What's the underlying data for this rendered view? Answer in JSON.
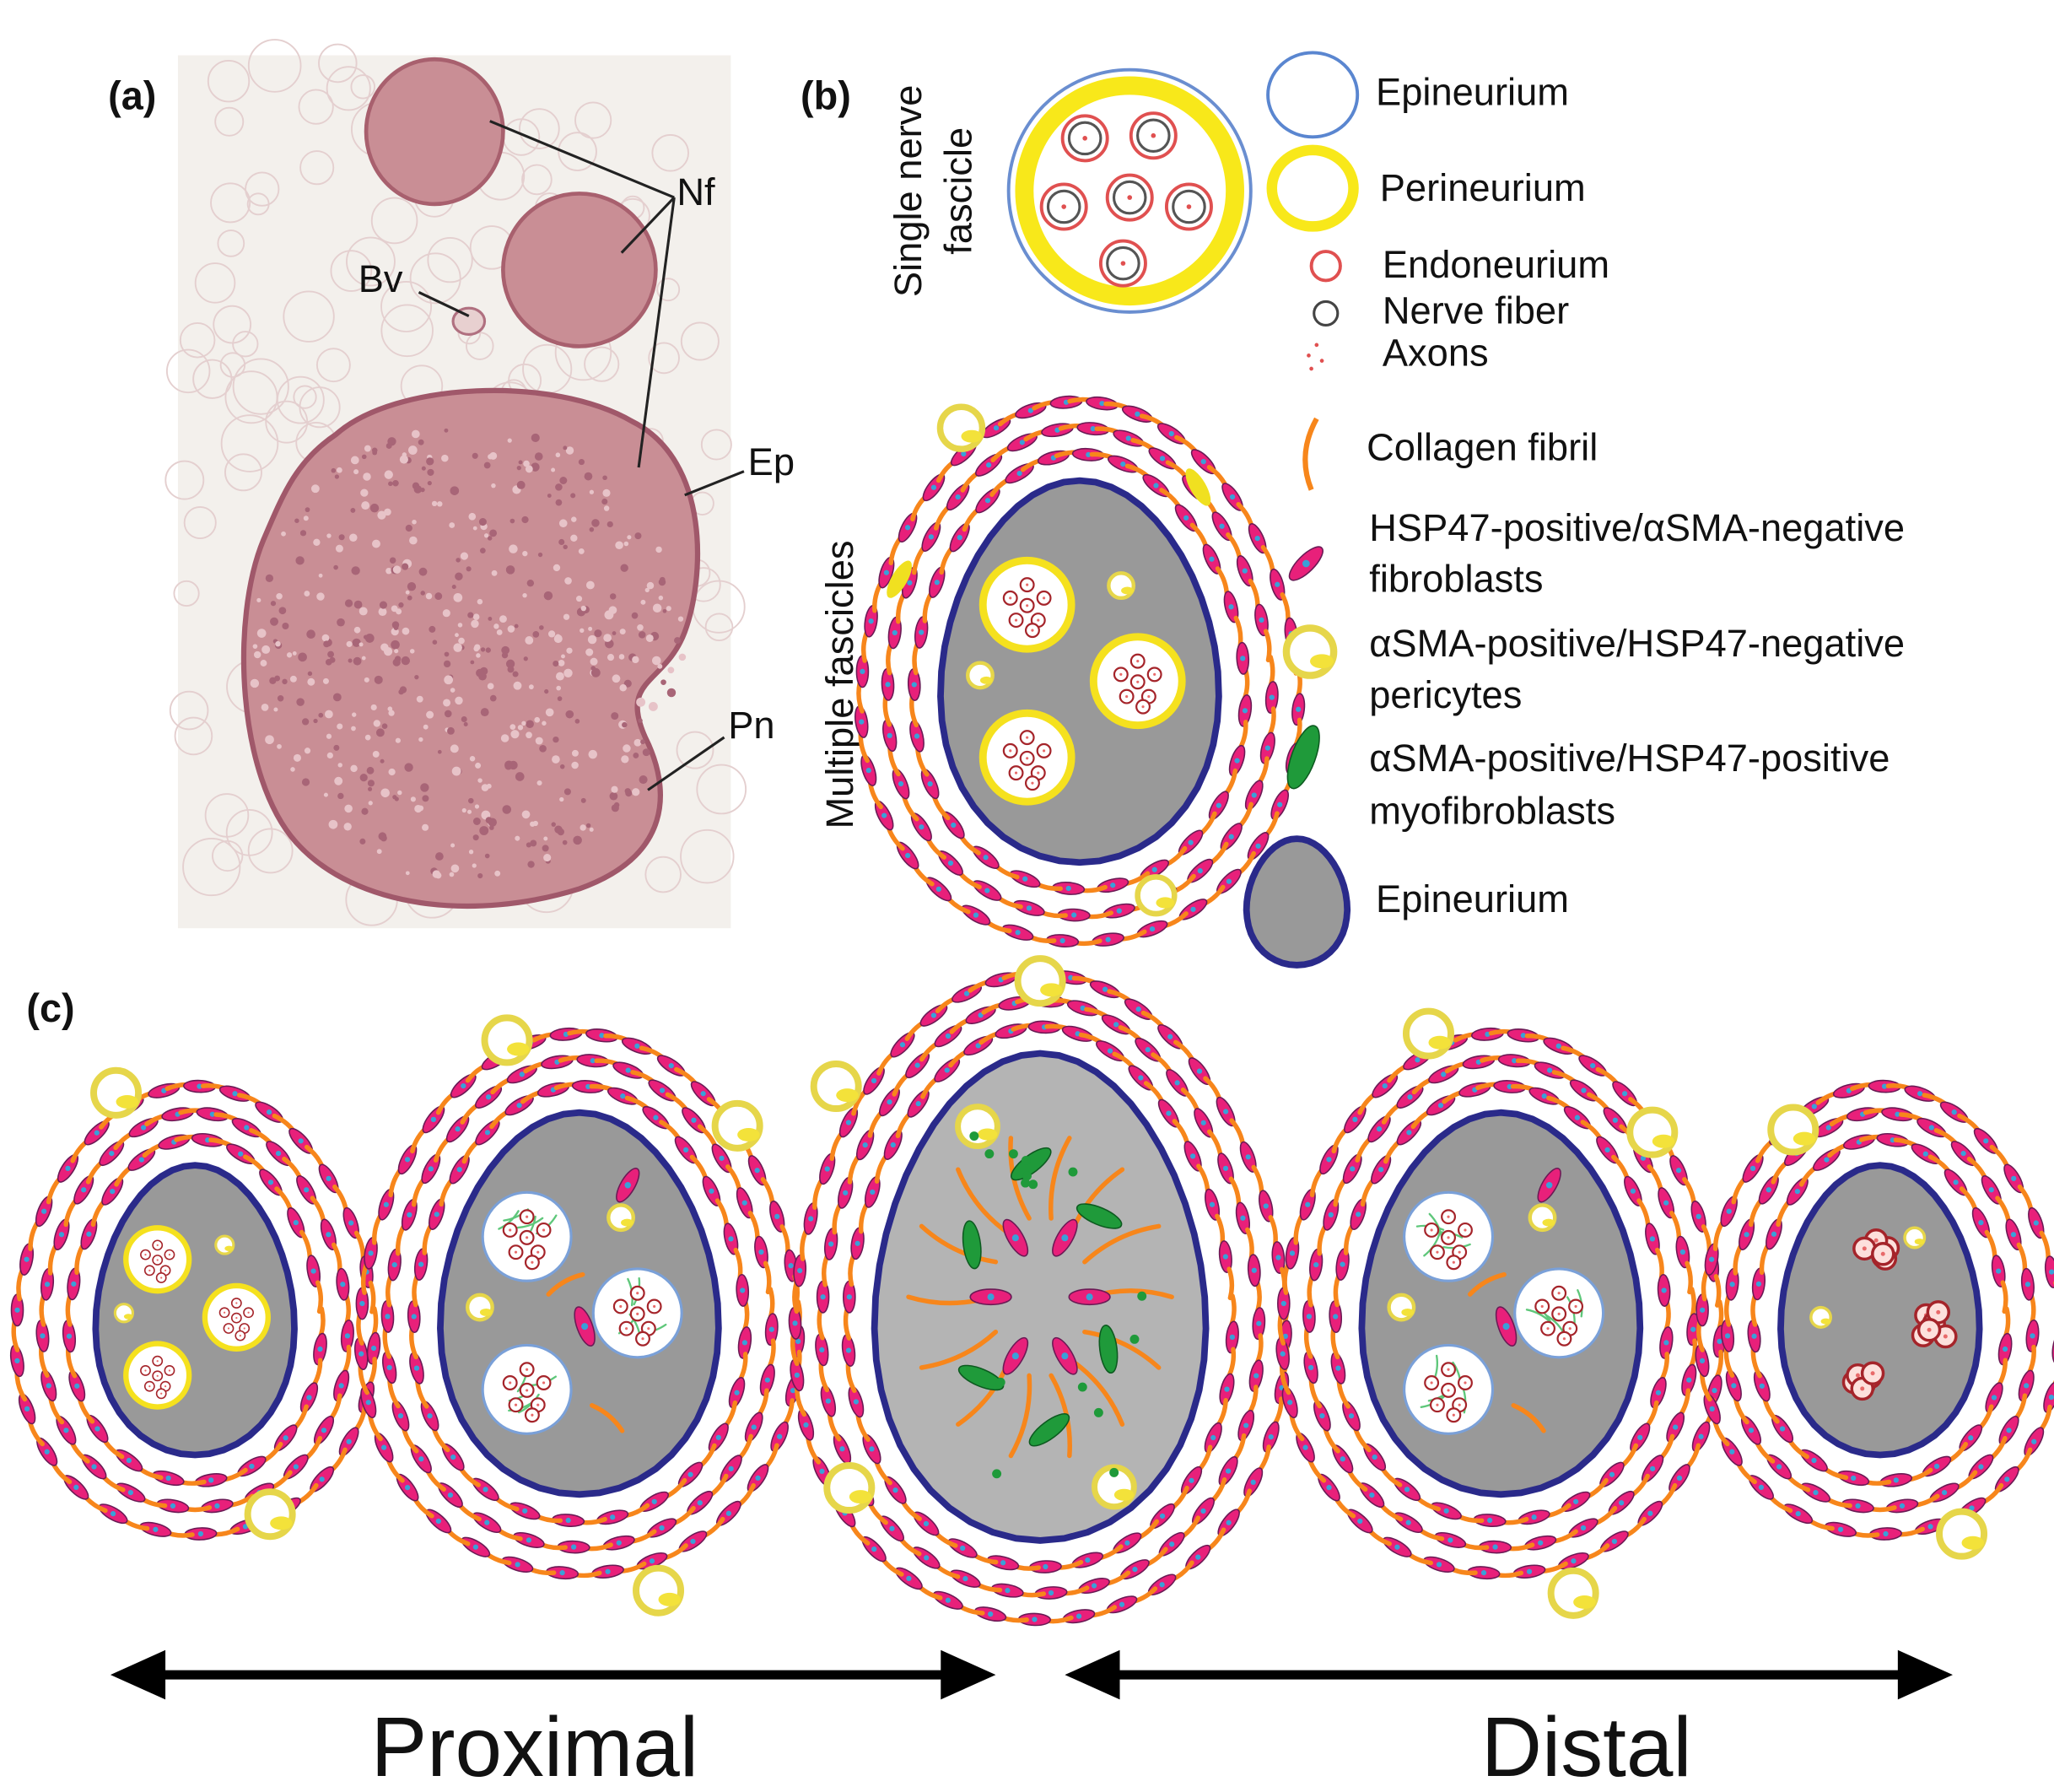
{
  "panel_a": {
    "label": "(a)",
    "annotations": [
      "Nf",
      "Bv",
      "Ep",
      "Pn"
    ]
  },
  "panel_b": {
    "label": "(b)",
    "single_title": [
      "Single nerve",
      "fascicle"
    ],
    "multiple_title": "Multiple fascicles",
    "legend": [
      {
        "lines": [
          "Epineurium"
        ]
      },
      {
        "lines": [
          "Perineurium"
        ]
      },
      {
        "lines": [
          "Endoneurium"
        ]
      },
      {
        "lines": [
          "Nerve fiber"
        ]
      },
      {
        "lines": [
          "Axons"
        ]
      },
      {
        "lines": [
          "Collagen fibril"
        ]
      },
      {
        "lines": [
          "HSP47-positive/αSMA-negative",
          "fibroblasts"
        ]
      },
      {
        "lines": [
          "αSMA-positive/HSP47-negative",
          "pericytes"
        ]
      },
      {
        "lines": [
          "αSMA-positive/HSP47-positive",
          "myofibroblasts"
        ]
      },
      {
        "lines": [
          "Epineurium"
        ]
      }
    ]
  },
  "panel_c": {
    "label": "(c)",
    "proximal": "Proximal",
    "distal": "Distal"
  }
}
